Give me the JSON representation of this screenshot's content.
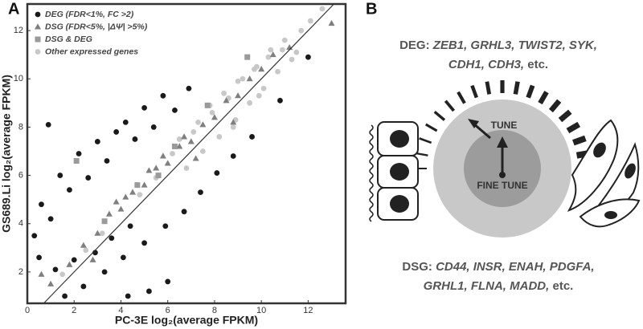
{
  "panel_labels": [
    "A",
    "B"
  ],
  "chart_data": {
    "type": "scatter",
    "x_label": "PC-3E log₂(average FPKM)",
    "y_label": "GS689.Li log₂(average FPKM)",
    "xlim": [
      0,
      13.6
    ],
    "ylim": [
      0.7,
      13.1
    ],
    "xticks": [
      0,
      2,
      4,
      6,
      8,
      10,
      12
    ],
    "yticks": [
      2,
      4,
      6,
      8,
      10,
      12
    ],
    "identity_line": true,
    "legend": "upper left",
    "series": [
      {
        "name": "Other expressed genes",
        "color": "#c8c8c8",
        "marker": "circle",
        "x": [
          6.2,
          6.8,
          7.1,
          7.5,
          7.9,
          8.2,
          8.6,
          8.9,
          9.2,
          9.5,
          9.8,
          10.1,
          10.4,
          10.7,
          11.0,
          11.3,
          11.7,
          12.1,
          12.6,
          7.3,
          8.4,
          9.0,
          9.7,
          10.3,
          10.9,
          6.5,
          7.8,
          8.8,
          9.9,
          11.5,
          5.5,
          4.8,
          3.2,
          2.5,
          1.5
        ],
        "values": [
          6.9,
          6.3,
          7.8,
          7.0,
          8.6,
          7.6,
          9.2,
          8.3,
          10.0,
          9.0,
          10.5,
          9.6,
          11.2,
          10.3,
          11.6,
          10.8,
          12.0,
          12.4,
          12.9,
          8.2,
          9.4,
          9.9,
          10.4,
          10.9,
          11.2,
          7.5,
          8.9,
          8.0,
          9.3,
          11.1,
          5.9,
          5.2,
          3.6,
          2.9,
          1.9
        ]
      },
      {
        "name": "DEG (FDR<1%, FC >2)",
        "color": "#1a1a1a",
        "marker": "circle",
        "x": [
          0.3,
          0.6,
          1.0,
          1.4,
          1.8,
          2.2,
          2.6,
          3.0,
          3.4,
          3.8,
          4.2,
          4.6,
          5.0,
          5.4,
          5.8,
          6.3,
          6.9,
          0.5,
          1.2,
          2.0,
          2.9,
          3.6,
          4.4,
          1.6,
          2.4,
          3.3,
          4.1,
          5.0,
          5.9,
          6.7,
          7.4,
          8.1,
          8.8,
          9.6,
          6.0,
          5.2,
          4.3,
          0.9,
          10.8,
          12.0
        ],
        "values": [
          3.5,
          4.8,
          4.2,
          6.0,
          5.4,
          6.9,
          5.9,
          7.4,
          6.6,
          7.8,
          8.2,
          7.5,
          8.8,
          8.0,
          9.3,
          8.7,
          9.6,
          2.6,
          2.1,
          2.5,
          2.8,
          3.4,
          3.9,
          1.0,
          1.4,
          2.0,
          2.6,
          3.2,
          3.9,
          4.5,
          5.3,
          6.1,
          6.8,
          7.6,
          1.6,
          1.2,
          1.0,
          8.1,
          9.1,
          10.9
        ]
      },
      {
        "name": "DSG (FDR<5%, |ΔΨ| >5%)",
        "color": "#7f7f7f",
        "marker": "triangle",
        "x": [
          1.0,
          1.8,
          2.4,
          3.0,
          3.5,
          4.0,
          4.5,
          5.0,
          5.5,
          6.0,
          6.5,
          7.0,
          7.5,
          8.0,
          8.5,
          9.0,
          9.5,
          10.0,
          10.5,
          11.2,
          2.8,
          4.2,
          5.8,
          7.2,
          8.8,
          3.8,
          5.2,
          6.7,
          13.0,
          0.6
        ],
        "values": [
          1.5,
          2.3,
          3.1,
          3.6,
          4.4,
          4.6,
          5.3,
          5.6,
          6.3,
          6.5,
          7.2,
          7.4,
          8.1,
          8.4,
          9.1,
          9.3,
          10.0,
          10.4,
          11.0,
          11.3,
          2.5,
          5.1,
          6.8,
          6.7,
          8.2,
          4.9,
          6.2,
          7.6,
          12.3,
          1.9
        ]
      },
      {
        "name": "DSG & DEG",
        "color": "#9a9a9a",
        "marker": "square",
        "x": [
          2.1,
          4.7,
          6.3,
          7.7,
          9.4,
          3.3,
          5.6
        ],
        "values": [
          6.6,
          5.6,
          7.2,
          8.9,
          10.9,
          4.1,
          6.0
        ]
      }
    ],
    "legend_order": [
      1,
      2,
      3,
      0
    ]
  },
  "panel_b": {
    "deg_label": "DEG:",
    "deg_genes_line1": "ZEB1, GRHL3, TWIST2, SYK,",
    "deg_genes_line2": "CDH1, CDH3,",
    "deg_etc": "etc.",
    "dial_outer": "TUNE",
    "dial_inner": "FINE TUNE",
    "dsg_label": "DSG:",
    "dsg_genes_line1": "CD44, INSR, ENAH, PDGFA,",
    "dsg_genes_line2": "GRHL1, FLNA, MADD,",
    "dsg_etc": "etc."
  }
}
